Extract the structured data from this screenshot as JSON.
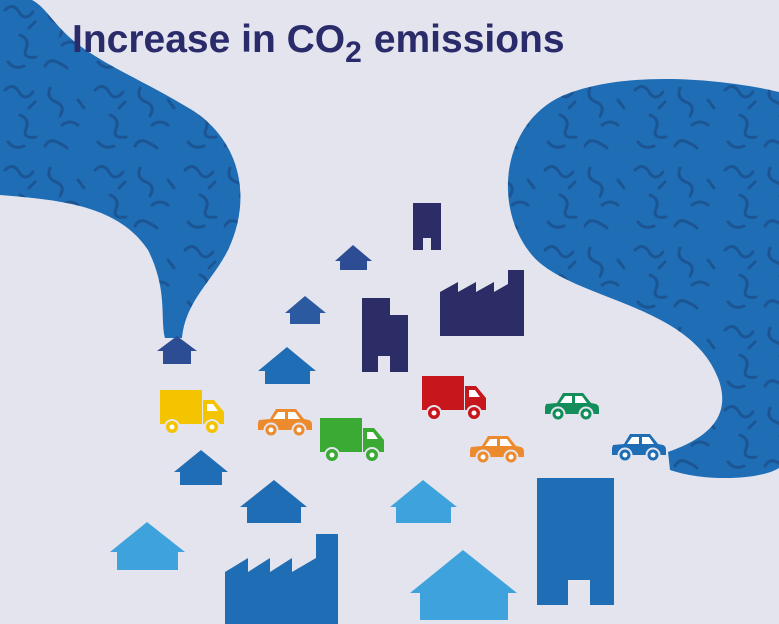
{
  "title": {
    "text": "Increase in CO",
    "subscript": "2",
    "suffix": "emissions"
  }
}
